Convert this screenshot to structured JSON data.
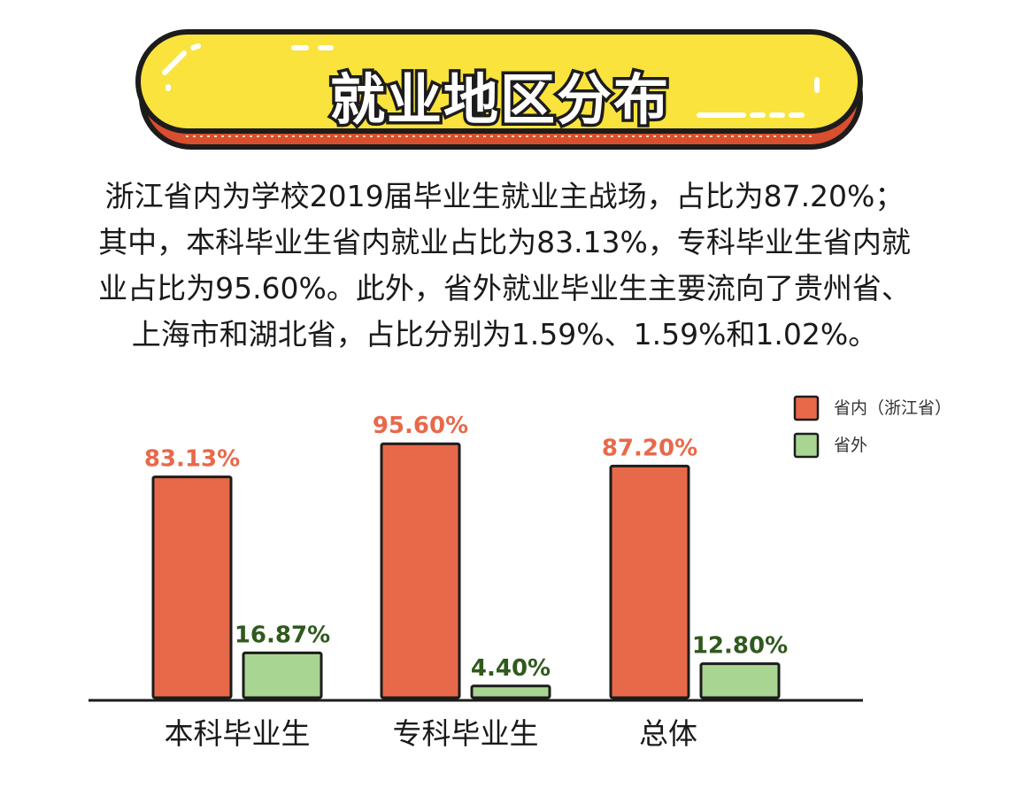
{
  "title": "就业地区分布",
  "paragraph_lines": [
    "浙江省内为学校2019届毕业生就业主战场，占比为87.20%；",
    "其中，本科毕业生省内就业占比为83.13%，专科毕业生省内就",
    "业占比为95.60%。此外，省外就业毕业生主要流向了贵州省、",
    "上海市和湖北省，占比分别为1.59%、1.59%和1.02%。"
  ],
  "colors": {
    "banner_fill": "#f9e33c",
    "banner_stripe": "#d84f2f",
    "outline": "#1c1c1c",
    "series_in": "#e8694a",
    "series_out": "#a9d592",
    "label_in": "#e8694a",
    "label_out": "#2f5a1d"
  },
  "chart_data": {
    "type": "bar",
    "categories": [
      "本科毕业生",
      "专科毕业生",
      "总体"
    ],
    "series": [
      {
        "name": "省内（浙江省）",
        "values": [
          83.13,
          95.6,
          87.2
        ],
        "labels": [
          "83.13%",
          "95.60%",
          "87.20%"
        ]
      },
      {
        "name": "省外",
        "values": [
          16.87,
          4.4,
          12.8
        ],
        "labels": [
          "16.87%",
          "4.40%",
          "12.80%"
        ]
      }
    ],
    "ylim": [
      0,
      100
    ],
    "legend": "top-right",
    "grid": false
  }
}
